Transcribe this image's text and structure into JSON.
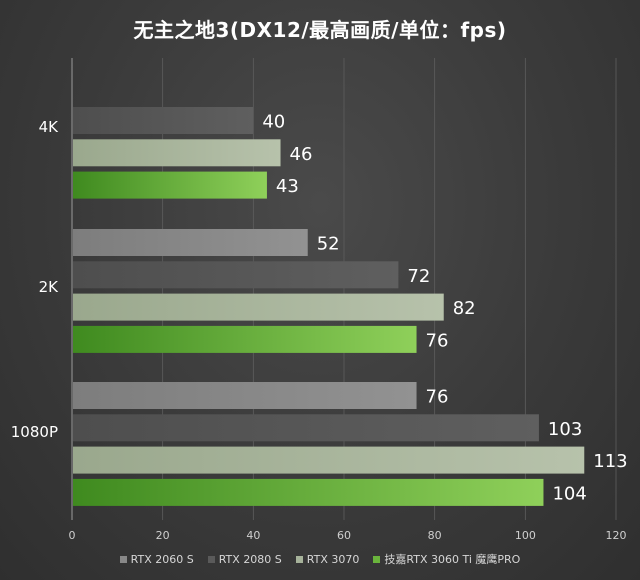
{
  "chart_data": {
    "type": "bar",
    "orientation": "horizontal",
    "title": "无主之地3(DX12/最高画质/单位：fps)",
    "categories": [
      "4K",
      "2K",
      "1080P"
    ],
    "series": [
      {
        "name": "RTX 2060 S",
        "values": [
          null,
          52,
          76
        ],
        "color": "#888888"
      },
      {
        "name": "RTX 2080 S",
        "values": [
          40,
          72,
          103
        ],
        "color": "#5a5a5a"
      },
      {
        "name": "RTX 3070",
        "values": [
          46,
          82,
          113
        ],
        "color": "#a6b29a"
      },
      {
        "name": "技嘉RTX 3060 Ti 魔鹰PRO",
        "values": [
          43,
          76,
          104
        ],
        "color": "#6ab43c"
      }
    ],
    "x_ticks": [
      "0",
      "20",
      "40",
      "60",
      "80",
      "100",
      "120"
    ],
    "xlim": [
      0,
      120
    ],
    "grid": true,
    "legend_position": "bottom"
  }
}
